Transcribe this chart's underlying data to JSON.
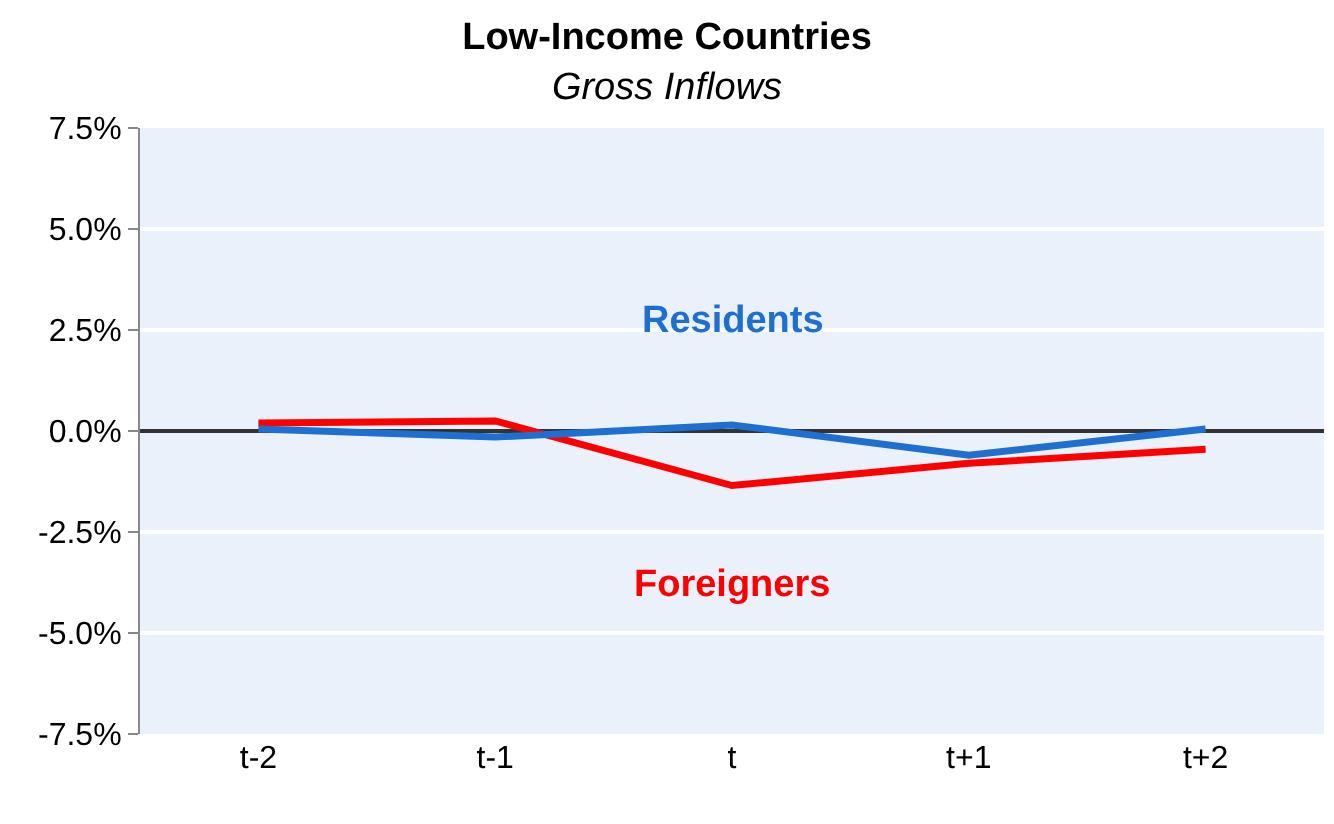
{
  "chart_data": {
    "type": "line",
    "title": "Low-Income Countries",
    "subtitle": "Gross Inflows",
    "categories": [
      "t-2",
      "t-1",
      "t",
      "t+1",
      "t+2"
    ],
    "series": [
      {
        "name": "Foreigners",
        "color": "#ff0000",
        "values": [
          0.2,
          0.25,
          -1.35,
          -0.8,
          -0.45
        ]
      },
      {
        "name": "Residents",
        "color": "#1f6fd1",
        "values": [
          0.05,
          -0.15,
          0.15,
          -0.6,
          0.05
        ]
      }
    ],
    "ylim": [
      -7.5,
      7.5
    ],
    "yticks": [
      {
        "value": -7.5,
        "label": "-7.5%"
      },
      {
        "value": -5,
        "label": "-5.0%"
      },
      {
        "value": -2.5,
        "label": "-2.5%"
      },
      {
        "value": 0,
        "label": "0.0%"
      },
      {
        "value": 2.5,
        "label": "2.5%"
      },
      {
        "value": 5,
        "label": "5.0%"
      },
      {
        "value": 7.5,
        "label": "7.5%"
      }
    ],
    "grid": "y",
    "legend": false,
    "marker": "none",
    "line_style": "solid"
  }
}
